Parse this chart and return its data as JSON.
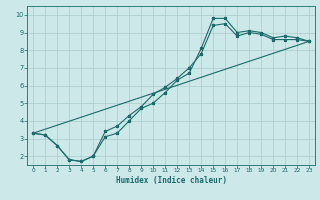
{
  "title": "",
  "xlabel": "Humidex (Indice chaleur)",
  "xlim": [
    -0.5,
    23.5
  ],
  "ylim": [
    1.5,
    10.5
  ],
  "xticks": [
    0,
    1,
    2,
    3,
    4,
    5,
    6,
    7,
    8,
    9,
    10,
    11,
    12,
    13,
    14,
    15,
    16,
    17,
    18,
    19,
    20,
    21,
    22,
    23
  ],
  "yticks": [
    2,
    3,
    4,
    5,
    6,
    7,
    8,
    9,
    10
  ],
  "bg_color": "#cce8e8",
  "line_color": "#1a6b6b",
  "grid_color": "#aacccc",
  "line1_x": [
    0,
    1,
    2,
    3,
    4,
    5,
    6,
    7,
    8,
    9,
    10,
    11,
    12,
    13,
    14,
    15,
    16,
    17,
    18,
    19,
    20,
    21,
    22,
    23
  ],
  "line1_y": [
    3.3,
    3.2,
    2.6,
    1.8,
    1.7,
    2.0,
    3.1,
    3.3,
    4.0,
    4.7,
    5.0,
    5.6,
    6.3,
    6.7,
    8.1,
    9.8,
    9.8,
    9.0,
    9.1,
    9.0,
    8.7,
    8.8,
    8.7,
    8.5
  ],
  "line2_x": [
    0,
    1,
    2,
    3,
    4,
    5,
    6,
    7,
    8,
    9,
    10,
    11,
    12,
    13,
    14,
    15,
    16,
    17,
    18,
    19,
    20,
    21,
    22,
    23
  ],
  "line2_y": [
    3.3,
    3.2,
    2.6,
    1.8,
    1.7,
    2.0,
    3.4,
    3.7,
    4.3,
    4.8,
    5.5,
    5.9,
    6.4,
    7.0,
    7.8,
    9.4,
    9.5,
    8.8,
    9.0,
    8.9,
    8.6,
    8.6,
    8.6,
    8.5
  ],
  "line3_x": [
    0,
    23
  ],
  "line3_y": [
    3.3,
    8.5
  ]
}
